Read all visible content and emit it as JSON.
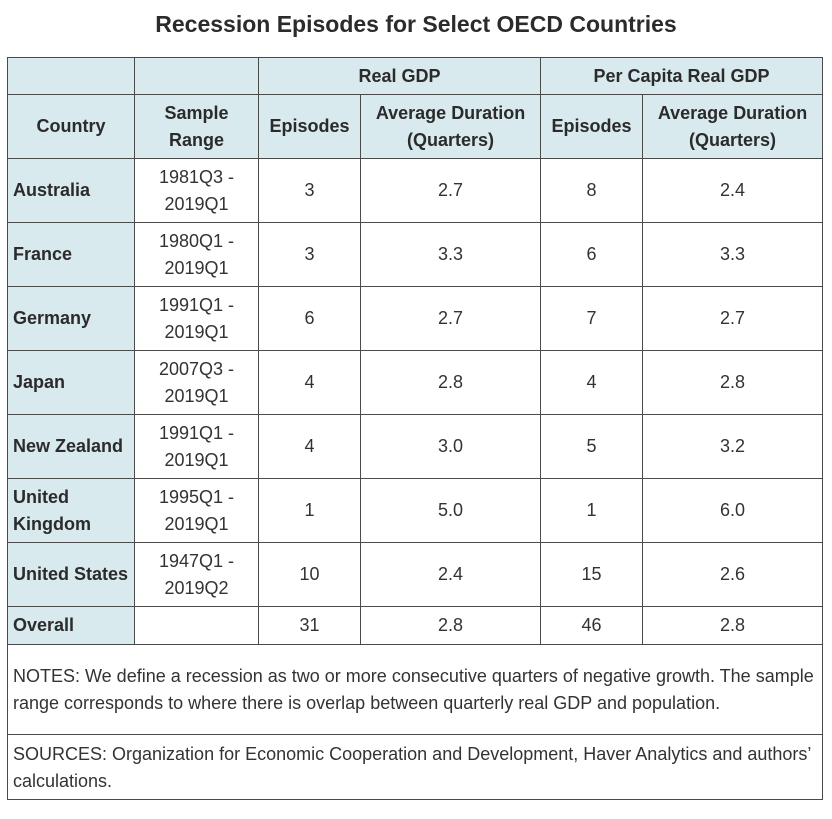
{
  "title": "Recession Episodes for Select OECD Countries",
  "header": {
    "group_real_gdp": "Real GDP",
    "group_per_capita": "Per Capita Real GDP",
    "country": "Country",
    "sample_range": "Sample Range",
    "episodes": "Episodes",
    "average_duration": "Average Duration (Quarters)"
  },
  "rows": [
    {
      "country": "Australia",
      "range": "1981Q3 - 2019Q1",
      "real_episodes": "3",
      "real_duration": "2.7",
      "pc_episodes": "8",
      "pc_duration": "2.4"
    },
    {
      "country": "France",
      "range": "1980Q1 - 2019Q1",
      "real_episodes": "3",
      "real_duration": "3.3",
      "pc_episodes": "6",
      "pc_duration": "3.3"
    },
    {
      "country": "Germany",
      "range": "1991Q1 - 2019Q1",
      "real_episodes": "6",
      "real_duration": "2.7",
      "pc_episodes": "7",
      "pc_duration": "2.7"
    },
    {
      "country": "Japan",
      "range": "2007Q3 - 2019Q1",
      "real_episodes": "4",
      "real_duration": "2.8",
      "pc_episodes": "4",
      "pc_duration": "2.8"
    },
    {
      "country": "New Zealand",
      "range": "1991Q1 - 2019Q1",
      "real_episodes": "4",
      "real_duration": "3.0",
      "pc_episodes": "5",
      "pc_duration": "3.2"
    },
    {
      "country": "United Kingdom",
      "range": "1995Q1 - 2019Q1",
      "real_episodes": "1",
      "real_duration": "5.0",
      "pc_episodes": "1",
      "pc_duration": "6.0"
    },
    {
      "country": "United States",
      "range": "1947Q1 - 2019Q2",
      "real_episodes": "10",
      "real_duration": "2.4",
      "pc_episodes": "15",
      "pc_duration": "2.6"
    }
  ],
  "overall": {
    "label": "Overall",
    "range": "",
    "real_episodes": "31",
    "real_duration": "2.8",
    "pc_episodes": "46",
    "pc_duration": "2.8"
  },
  "notes": "NOTES: We define a recession as two or more consecutive quarters of negative growth. The sample range corresponds to where there is overlap between quarterly real GDP and population.",
  "sources": "SOURCES: Organization for Economic Cooperation and Development, Haver Analytics and authors’ calculations.",
  "colors": {
    "header_bg": "#d8eaee",
    "border": "#4a4a4a"
  }
}
